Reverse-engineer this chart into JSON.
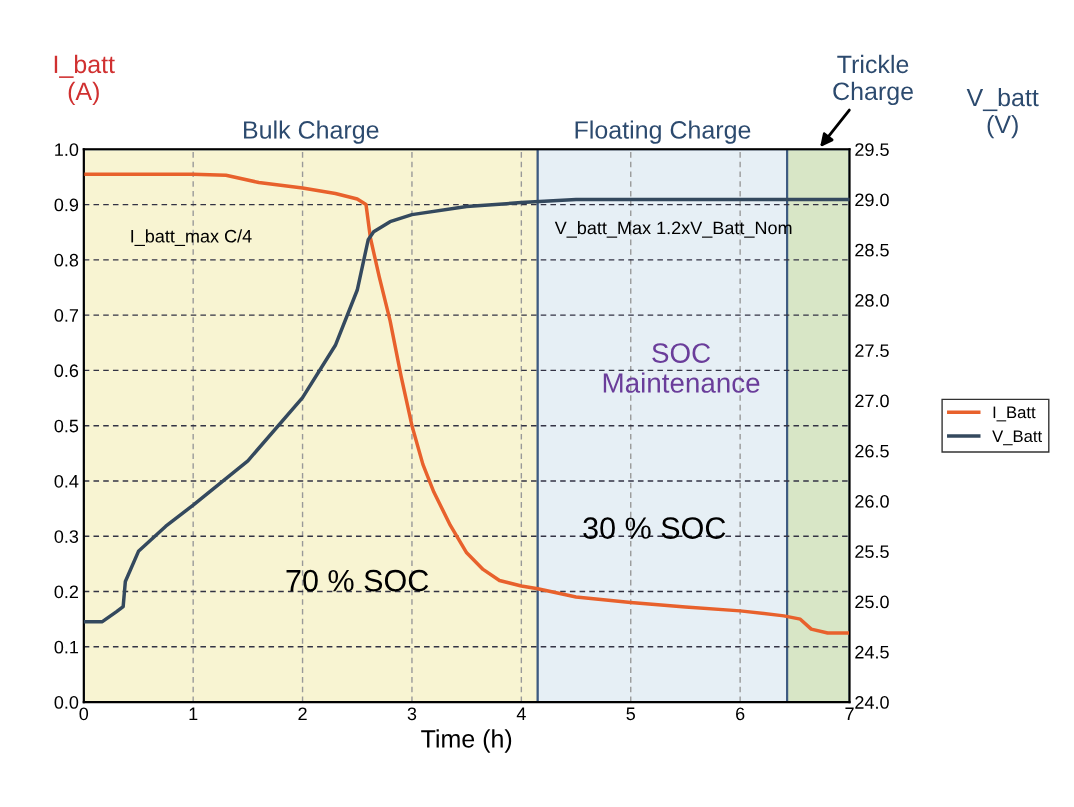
{
  "chart_data": {
    "type": "line",
    "xlabel": "Time (h)",
    "ylabel": "I_batt\n(A)",
    "y2label": "V_batt\n(V)",
    "xlim": [
      0,
      7
    ],
    "xticks": [
      0,
      1,
      2,
      3,
      4,
      5,
      6,
      7
    ],
    "ylim": [
      0,
      1
    ],
    "yticks": [
      {
        "value": 0,
        "label": "0.0"
      },
      {
        "value": 0.1,
        "label": "0.1"
      },
      {
        "value": 0.2,
        "label": "0.2"
      },
      {
        "value": 0.3,
        "label": "0.3"
      },
      {
        "value": 0.4,
        "label": "0.4"
      },
      {
        "value": 0.5,
        "label": "0.5"
      },
      {
        "value": 0.6,
        "label": "0.6"
      },
      {
        "value": 0.7,
        "label": "0.7"
      },
      {
        "value": 0.8,
        "label": "0.8"
      },
      {
        "value": 0.9,
        "label": "0.9"
      },
      {
        "value": 1,
        "label": "1.0"
      }
    ],
    "y2lim": [
      24,
      29.5
    ],
    "y2ticks": [
      {
        "value": 24,
        "label": "24.0"
      },
      {
        "value": 24.5,
        "label": "24.5"
      },
      {
        "value": 25,
        "label": "25.0"
      },
      {
        "value": 25.5,
        "label": "25.5"
      },
      {
        "value": 26,
        "label": "26.0"
      },
      {
        "value": 26.5,
        "label": "26.5"
      },
      {
        "value": 27,
        "label": "27.0"
      },
      {
        "value": 27.5,
        "label": "27.5"
      },
      {
        "value": 28,
        "label": "28.0"
      },
      {
        "value": 28.5,
        "label": "28.5"
      },
      {
        "value": 29,
        "label": "29.0"
      },
      {
        "value": 29.5,
        "label": "29.5"
      }
    ],
    "grid": true,
    "legend": "right",
    "marker": "none",
    "line_style": "solid",
    "series": [
      {
        "name": "I_Batt",
        "color": "#e8612c",
        "x": [
          0,
          0.5,
          1,
          1.3,
          1.6,
          2,
          2.3,
          2.5,
          2.58,
          2.62,
          2.7,
          2.8,
          2.9,
          3,
          3.1,
          3.2,
          3.35,
          3.5,
          3.65,
          3.8,
          4,
          4.15,
          4.5,
          5,
          5.5,
          6,
          6.4,
          6.55,
          6.65,
          6.8,
          7
        ],
        "values": [
          0.955,
          0.955,
          0.955,
          0.953,
          0.94,
          0.93,
          0.92,
          0.91,
          0.9,
          0.84,
          0.77,
          0.69,
          0.59,
          0.5,
          0.43,
          0.38,
          0.32,
          0.27,
          0.24,
          0.22,
          0.21,
          0.205,
          0.19,
          0.18,
          0.172,
          0.165,
          0.156,
          0.15,
          0.132,
          0.125,
          0.125
        ]
      },
      {
        "name": "V_Batt",
        "color": "#34495e",
        "axis": "y2",
        "x": [
          0,
          0.17,
          0.3,
          0.36,
          0.38,
          0.5,
          0.75,
          1,
          1.5,
          2,
          2.3,
          2.5,
          2.6,
          2.65,
          2.8,
          3,
          3.5,
          4,
          4.5,
          5,
          6,
          7
        ],
        "values": [
          24.8,
          24.8,
          24.9,
          24.95,
          25.2,
          25.5,
          25.75,
          25.96,
          26.4,
          27.03,
          27.55,
          28.1,
          28.6,
          28.68,
          28.78,
          28.85,
          28.93,
          28.97,
          29.0,
          29.0,
          29.0,
          29.0
        ]
      }
    ],
    "bands": [
      {
        "axis": "x",
        "from": 0,
        "to": 4.15,
        "label": "Bulk Charge",
        "color": "#f8f4d2"
      },
      {
        "axis": "x",
        "from": 4.15,
        "to": 6.43,
        "label": "Floating Charge",
        "color": "#e6eff5"
      },
      {
        "axis": "x",
        "from": 6.43,
        "to": 7,
        "label": "Trickle\nCharge",
        "color": "#d8e6c6"
      }
    ],
    "annotations": [
      "I_batt_max C/4",
      "V_batt_Max 1.2xV_Batt_Nom",
      "70 % SOC",
      "30 % SOC",
      "SOC\nMaintenance"
    ]
  }
}
